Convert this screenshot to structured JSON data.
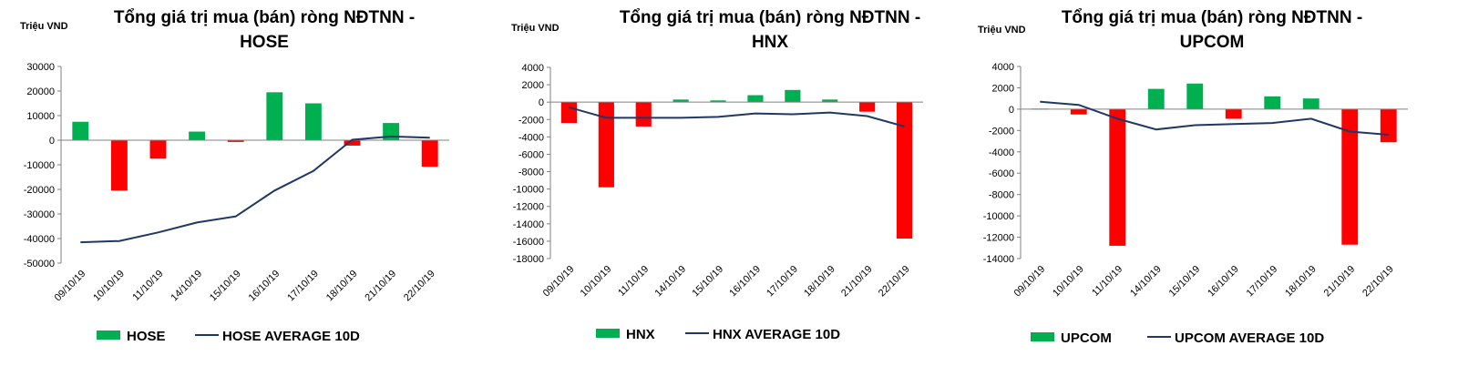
{
  "chart_data": [
    {
      "type": "bar",
      "unit_label": "Triệu VND",
      "title_line1": "Tổng giá trị mua (bán) ròng NĐTNN -",
      "title_line2": "HOSE",
      "categories": [
        "09/10/19",
        "10/10/19",
        "11/10/19",
        "14/10/19",
        "15/10/19",
        "16/10/19",
        "17/10/19",
        "18/10/19",
        "21/10/19",
        "22/10/19"
      ],
      "series": [
        {
          "name": "HOSE",
          "kind": "bar",
          "values": [
            7500,
            -20500,
            -7500,
            3500,
            -700,
            19500,
            15000,
            -2200,
            7000,
            -10800
          ]
        },
        {
          "name": "HOSE AVERAGE 10D",
          "kind": "line",
          "values": [
            -41500,
            -41000,
            -37500,
            -33500,
            -31000,
            -20500,
            -12500,
            200,
            1500,
            1000
          ]
        }
      ],
      "ylim": [
        -50000,
        30000
      ],
      "yticks": [
        "30000",
        "20000",
        "10000",
        "0",
        "-10000",
        "-20000",
        "-30000",
        "-40000",
        "-50000"
      ],
      "colors": {
        "positive": "#00b050",
        "negative": "#ff0000",
        "line": "#1f3864"
      }
    },
    {
      "type": "bar",
      "unit_label": "Triệu VND",
      "title_line1": "Tổng giá trị mua (bán) ròng NĐTNN -",
      "title_line2": "HNX",
      "categories": [
        "09/10/19",
        "10/10/19",
        "11/10/19",
        "14/10/19",
        "15/10/19",
        "16/10/19",
        "17/10/19",
        "18/10/19",
        "21/10/19",
        "22/10/19"
      ],
      "series": [
        {
          "name": "HNX",
          "kind": "bar",
          "values": [
            -2400,
            -9800,
            -2800,
            300,
            200,
            800,
            1400,
            300,
            -1100,
            -15700
          ]
        },
        {
          "name": "HNX AVERAGE 10D",
          "kind": "line",
          "values": [
            -600,
            -1800,
            -1800,
            -1800,
            -1700,
            -1300,
            -1400,
            -1200,
            -1600,
            -2800
          ]
        }
      ],
      "ylim": [
        -18000,
        4000
      ],
      "yticks": [
        "4000",
        "2000",
        "0",
        "-2000",
        "-4000",
        "-6000",
        "-8000",
        "-10000",
        "-12000",
        "-14000",
        "-16000",
        "-18000"
      ],
      "colors": {
        "positive": "#00b050",
        "negative": "#ff0000",
        "line": "#1f3864"
      }
    },
    {
      "type": "bar",
      "unit_label": "Triệu VND",
      "title_line1": "Tổng giá trị mua (bán) ròng NĐTNN -",
      "title_line2": "UPCOM",
      "categories": [
        "09/10/19",
        "10/10/19",
        "11/10/19",
        "14/10/19",
        "15/10/19",
        "16/10/19",
        "17/10/19",
        "18/10/19",
        "21/10/19",
        "22/10/19"
      ],
      "series": [
        {
          "name": "UPCOM",
          "kind": "bar",
          "values": [
            50,
            -500,
            -12800,
            1900,
            2400,
            -900,
            1200,
            1000,
            -12700,
            -3100
          ]
        },
        {
          "name": "UPCOM AVERAGE 10D",
          "kind": "line",
          "values": [
            700,
            400,
            -900,
            -1900,
            -1500,
            -1400,
            -1300,
            -900,
            -2100,
            -2400
          ]
        }
      ],
      "ylim": [
        -14000,
        4000
      ],
      "yticks": [
        "4000",
        "2000",
        "0",
        "-2000",
        "-4000",
        "-6000",
        "-8000",
        "-10000",
        "-12000",
        "-14000"
      ],
      "colors": {
        "positive": "#00b050",
        "negative": "#ff0000",
        "line": "#1f3864"
      }
    }
  ]
}
